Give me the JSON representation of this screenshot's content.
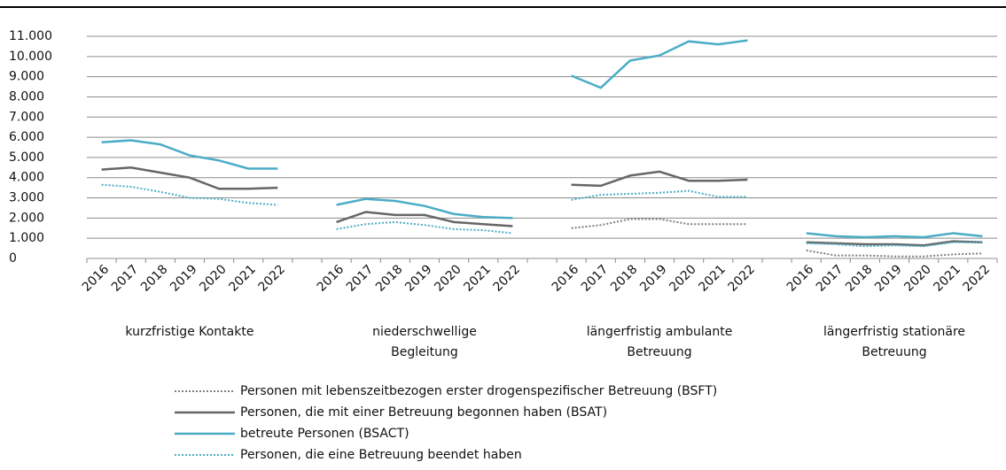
{
  "chart_data": {
    "type": "line",
    "categories": [
      "2016",
      "2017",
      "2018",
      "2019",
      "2020",
      "2021",
      "2022",
      null,
      "2016",
      "2017",
      "2018",
      "2019",
      "2020",
      "2021",
      "2022",
      null,
      "2016",
      "2017",
      "2018",
      "2019",
      "2020",
      "2021",
      "2022",
      null,
      "2016",
      "2017",
      "2018",
      "2019",
      "2020",
      "2021",
      "2022"
    ],
    "groups": [
      [
        "kurzfristige Kontakte"
      ],
      [
        "niederschwellige",
        "Begleitung"
      ],
      [
        "längerfristig ambulante",
        "Betreuung"
      ],
      [
        "längerfristig stationäre",
        "Betreuung"
      ]
    ],
    "ylim": [
      0,
      11000
    ],
    "yticks": [
      0,
      {
        "value": 1000,
        "label": "1.000"
      },
      {
        "value": 2000,
        "label": "2.000"
      },
      {
        "value": 3000,
        "label": "3.000"
      },
      {
        "value": 4000,
        "label": "4.000"
      },
      {
        "value": 5000,
        "label": "5.000"
      },
      {
        "value": 6000,
        "label": "6.000"
      },
      {
        "value": 7000,
        "label": "7.000"
      },
      {
        "value": 8000,
        "label": "8.000"
      },
      {
        "value": 9000,
        "label": "9.000"
      },
      {
        "value": 10000,
        "label": "10.000"
      },
      {
        "value": 11000,
        "label": "11.000"
      }
    ],
    "grid": true,
    "series": [
      {
        "name": "Personen mit lebenszeitbezogen erster drogenspezifischer Betreuung (BSFT)",
        "color": "#7f7f7f",
        "dash": "dotted",
        "values": [
          null,
          null,
          null,
          null,
          null,
          null,
          null,
          null,
          null,
          null,
          null,
          null,
          null,
          null,
          null,
          null,
          1500,
          1650,
          1950,
          1950,
          1700,
          1700,
          1700,
          null,
          400,
          150,
          150,
          100,
          100,
          200,
          250
        ]
      },
      {
        "name": "Personen, die mit einer Betreuung begonnen haben (BSAT)",
        "color": "#666666",
        "dash": "solid",
        "values": [
          4400,
          4500,
          4250,
          4000,
          3450,
          3450,
          3500,
          null,
          1800,
          2300,
          2150,
          2150,
          1800,
          1700,
          1600,
          null,
          3650,
          3600,
          4100,
          4300,
          3850,
          3850,
          3900,
          null,
          800,
          750,
          700,
          700,
          650,
          850,
          800
        ]
      },
      {
        "name": "betreute Personen (BSACT)",
        "color": "#4bacc6",
        "dash": "solid",
        "values": [
          5750,
          5850,
          5650,
          5100,
          4850,
          4450,
          4450,
          null,
          2650,
          2950,
          2850,
          2600,
          2200,
          2050,
          2000,
          null,
          9050,
          8450,
          9800,
          10050,
          10750,
          10600,
          10800,
          null,
          1250,
          1100,
          1050,
          1100,
          1050,
          1250,
          1100
        ]
      },
      {
        "name": "Personen, die eine Betreuung beendet haben",
        "color": "#4bacc6",
        "dash": "dotted",
        "values": [
          3650,
          3550,
          3300,
          3000,
          2950,
          2750,
          2650,
          null,
          1450,
          1700,
          1800,
          1650,
          1450,
          1400,
          1250,
          null,
          2900,
          3150,
          3200,
          3250,
          3350,
          3050,
          3050,
          null,
          750,
          700,
          600,
          650,
          600,
          800,
          800
        ]
      }
    ]
  }
}
